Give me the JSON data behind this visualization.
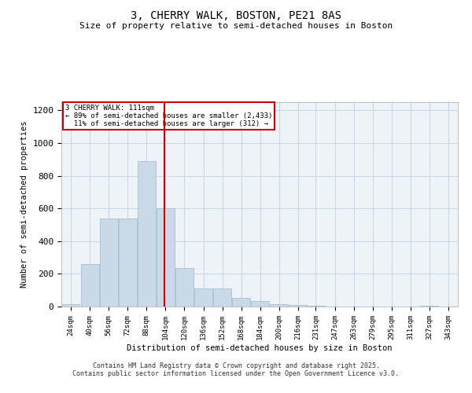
{
  "title": "3, CHERRY WALK, BOSTON, PE21 8AS",
  "subtitle": "Size of property relative to semi-detached houses in Boston",
  "xlabel": "Distribution of semi-detached houses by size in Boston",
  "ylabel": "Number of semi-detached properties",
  "property_size": 111,
  "annotation_line1": "3 CHERRY WALK: 111sqm",
  "annotation_line2": "← 89% of semi-detached houses are smaller (2,433)",
  "annotation_line3": "  11% of semi-detached houses are larger (312) →",
  "bins": [
    24,
    40,
    56,
    72,
    88,
    104,
    120,
    136,
    152,
    168,
    184,
    200,
    216,
    231,
    247,
    263,
    279,
    295,
    311,
    327,
    343
  ],
  "values": [
    15,
    260,
    540,
    540,
    890,
    600,
    235,
    110,
    110,
    55,
    35,
    15,
    10,
    5,
    2,
    1,
    1,
    0,
    0,
    5,
    0
  ],
  "bar_color": "#c9d9e8",
  "bar_edge_color": "#a0b8cc",
  "vline_color": "#cc0000",
  "vline_x": 111,
  "grid_color": "#c8d8e8",
  "bg_color": "#eef3f8",
  "annotation_box_color": "#cc0000",
  "footer_line1": "Contains HM Land Registry data © Crown copyright and database right 2025.",
  "footer_line2": "Contains public sector information licensed under the Open Government Licence v3.0.",
  "ylim": [
    0,
    1250
  ],
  "yticks": [
    0,
    200,
    400,
    600,
    800,
    1000,
    1200
  ]
}
